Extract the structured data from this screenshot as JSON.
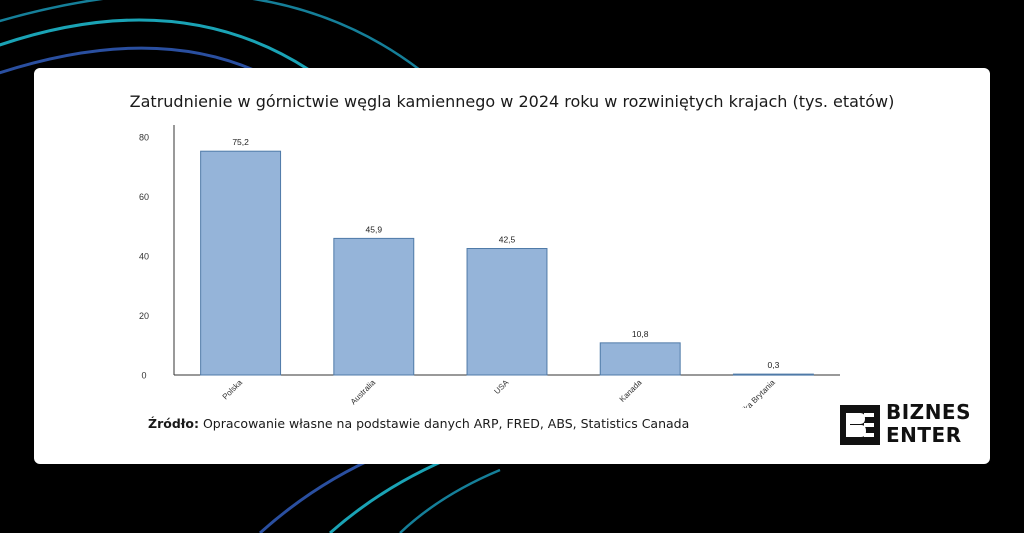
{
  "chart_data": {
    "type": "bar",
    "title": "Zatrudnienie w górnictwie węgla kamiennego w 2024 roku w rozwiniętych krajach (tys. etatów)",
    "categories": [
      "Polska",
      "Australia",
      "USA",
      "Kanada",
      "Wielka Brytania"
    ],
    "values": [
      75.2,
      45.9,
      42.5,
      10.8,
      0.3
    ],
    "value_labels": [
      "75,2",
      "45,9",
      "42,5",
      "10,8",
      "0,3"
    ],
    "xlabel": "",
    "ylabel": "",
    "ylim": [
      0,
      84
    ],
    "yticks": [
      0,
      20,
      40,
      60,
      80
    ],
    "grid": false,
    "bar_color": "#95b4d9",
    "bar_edge_color": "#4f7aa8"
  },
  "source": {
    "label": "Źródło:",
    "text": " Opracowanie własne na podstawie danych ARP, FRED, ABS, Statistics Canada"
  },
  "logo": {
    "mark": "BE",
    "line1": "BIZNES",
    "line2": "ENTER"
  },
  "colors": {
    "background": "#000000",
    "card": "#ffffff",
    "arc_cyan": "#1aa3b5",
    "arc_blue": "#2a4fa0"
  }
}
